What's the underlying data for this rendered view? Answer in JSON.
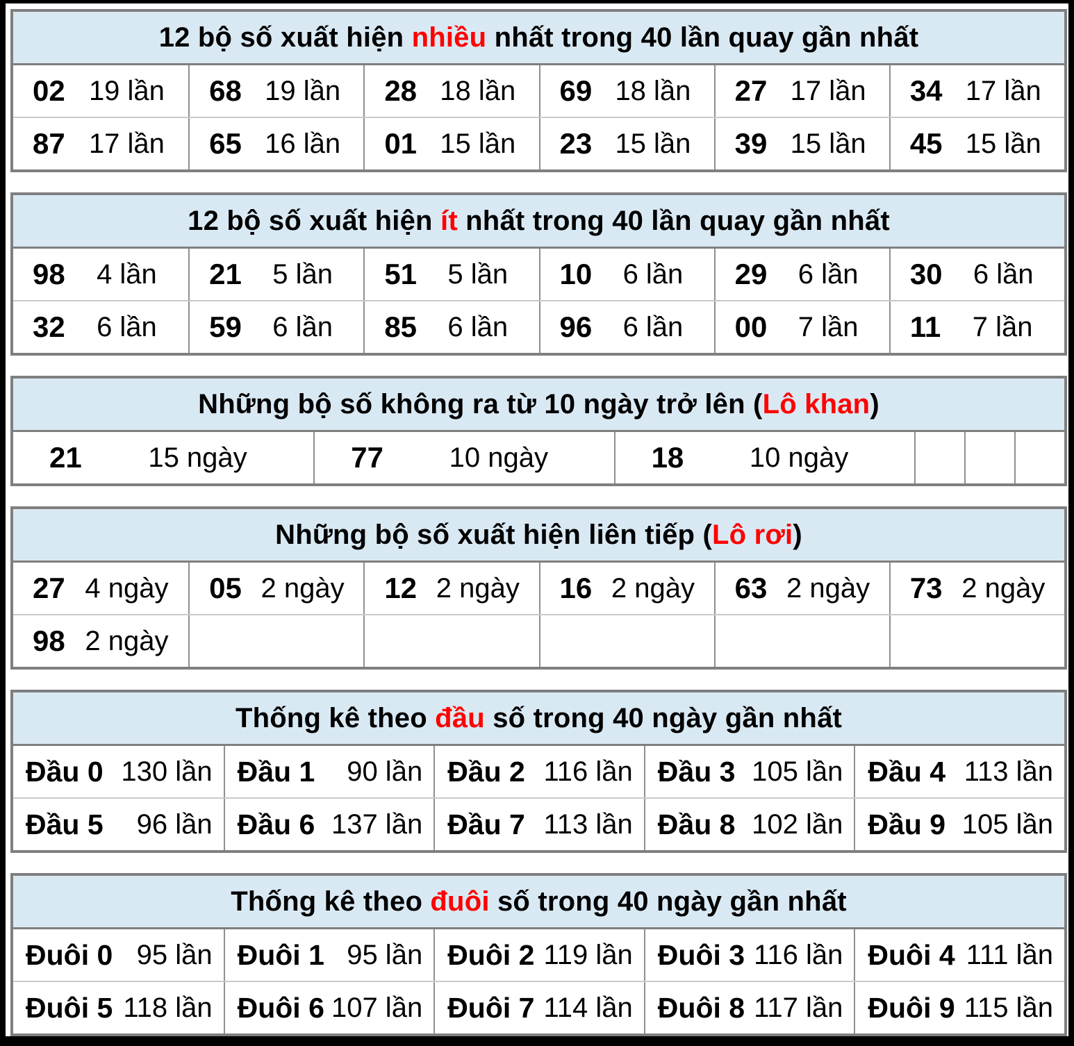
{
  "colors": {
    "header_bg": "#d9e9f4",
    "accent_red": "#ff0000",
    "table_border": "#7f7f7f",
    "cell_border": "#8f8f8f",
    "row_separator": "#c9c9c9",
    "page_bg": "#ffffff",
    "frame_bg": "#000000",
    "text": "#000000"
  },
  "chart_data": [
    {
      "type": "table",
      "name": "most-frequent",
      "title": "12 bộ số xuất hiện nhiều nhất trong 40 lần quay gần nhất",
      "title_parts": [
        {
          "t": "12 bộ số xuất hiện ",
          "red": false
        },
        {
          "t": "nhiều",
          "red": true
        },
        {
          "t": " nhất trong 40 lần quay gần nhất",
          "red": false
        }
      ],
      "layout": "cols6",
      "rows": [
        [
          {
            "n": "02",
            "v": "19 lần"
          },
          {
            "n": "68",
            "v": "19 lần"
          },
          {
            "n": "28",
            "v": "18 lần"
          },
          {
            "n": "69",
            "v": "18 lần"
          },
          {
            "n": "27",
            "v": "17 lần"
          },
          {
            "n": "34",
            "v": "17 lần"
          }
        ],
        [
          {
            "n": "87",
            "v": "17 lần"
          },
          {
            "n": "65",
            "v": "16 lần"
          },
          {
            "n": "01",
            "v": "15 lần"
          },
          {
            "n": "23",
            "v": "15 lần"
          },
          {
            "n": "39",
            "v": "15 lần"
          },
          {
            "n": "45",
            "v": "15 lần"
          }
        ]
      ]
    },
    {
      "type": "table",
      "name": "least-frequent",
      "title": "12 bộ số xuất hiện ít nhất trong 40 lần quay gần nhất",
      "title_parts": [
        {
          "t": "12 bộ số xuất hiện ",
          "red": false
        },
        {
          "t": "ít",
          "red": true
        },
        {
          "t": " nhất trong 40 lần quay gần nhất",
          "red": false
        }
      ],
      "layout": "cols6",
      "rows": [
        [
          {
            "n": "98",
            "v": "4 lần"
          },
          {
            "n": "21",
            "v": "5 lần"
          },
          {
            "n": "51",
            "v": "5 lần"
          },
          {
            "n": "10",
            "v": "6 lần"
          },
          {
            "n": "29",
            "v": "6 lần"
          },
          {
            "n": "30",
            "v": "6 lần"
          }
        ],
        [
          {
            "n": "32",
            "v": "6 lần"
          },
          {
            "n": "59",
            "v": "6 lần"
          },
          {
            "n": "85",
            "v": "6 lần"
          },
          {
            "n": "96",
            "v": "6 lần"
          },
          {
            "n": "00",
            "v": "7 lần"
          },
          {
            "n": "11",
            "v": "7 lần"
          }
        ]
      ]
    },
    {
      "type": "table",
      "name": "lo-khan",
      "title": "Những bộ số không ra từ 10 ngày trở lên (Lô khan)",
      "title_parts": [
        {
          "t": "Những bộ số không ra từ 10 ngày trở lên (",
          "red": false
        },
        {
          "t": "Lô khan",
          "red": true
        },
        {
          "t": ")",
          "red": false
        }
      ],
      "layout": "khan",
      "rows": [
        [
          {
            "n": "21",
            "v": "15 ngày"
          },
          {
            "n": "77",
            "v": "10 ngày"
          },
          {
            "n": "18",
            "v": "10 ngày"
          },
          null,
          null,
          null
        ]
      ]
    },
    {
      "type": "table",
      "name": "lo-roi",
      "title": "Những bộ số xuất hiện liên tiếp (Lô rơi)",
      "title_parts": [
        {
          "t": "Những bộ số xuất hiện liên tiếp (",
          "red": false
        },
        {
          "t": "Lô rơi",
          "red": true
        },
        {
          "t": ")",
          "red": false
        }
      ],
      "layout": "cols6",
      "rows": [
        [
          {
            "n": "27",
            "v": "4 ngày"
          },
          {
            "n": "05",
            "v": "2 ngày"
          },
          {
            "n": "12",
            "v": "2 ngày"
          },
          {
            "n": "16",
            "v": "2 ngày"
          },
          {
            "n": "63",
            "v": "2 ngày"
          },
          {
            "n": "73",
            "v": "2 ngày"
          }
        ],
        [
          {
            "n": "98",
            "v": "2 ngày"
          },
          null,
          null,
          null,
          null,
          null
        ]
      ]
    },
    {
      "type": "table",
      "name": "dau-stats",
      "title": "Thống kê theo đầu số trong 40 ngày gần nhất",
      "title_parts": [
        {
          "t": "Thống kê theo ",
          "red": false
        },
        {
          "t": "đầu",
          "red": true
        },
        {
          "t": " số trong 40 ngày gần nhất",
          "red": false
        }
      ],
      "layout": "cols5",
      "rows": [
        [
          {
            "n": "Đầu 0",
            "v": "130 lần"
          },
          {
            "n": "Đầu 1",
            "v": "90 lần"
          },
          {
            "n": "Đầu 2",
            "v": "116 lần"
          },
          {
            "n": "Đầu 3",
            "v": "105 lần"
          },
          {
            "n": "Đầu 4",
            "v": "113 lần"
          }
        ],
        [
          {
            "n": "Đầu 5",
            "v": "96 lần"
          },
          {
            "n": "Đầu 6",
            "v": "137 lần"
          },
          {
            "n": "Đầu 7",
            "v": "113 lần"
          },
          {
            "n": "Đầu 8",
            "v": "102 lần"
          },
          {
            "n": "Đầu 9",
            "v": "105 lần"
          }
        ]
      ]
    },
    {
      "type": "table",
      "name": "duoi-stats",
      "title": "Thống kê theo đuôi số trong 40 ngày gần nhất",
      "title_parts": [
        {
          "t": "Thống kê theo ",
          "red": false
        },
        {
          "t": "đuôi",
          "red": true
        },
        {
          "t": " số trong 40 ngày gần nhất",
          "red": false
        }
      ],
      "layout": "cols5",
      "rows": [
        [
          {
            "n": "Đuôi 0",
            "v": "95 lần"
          },
          {
            "n": "Đuôi 1",
            "v": "95 lần"
          },
          {
            "n": "Đuôi 2",
            "v": "119 lần"
          },
          {
            "n": "Đuôi 3",
            "v": "116 lần"
          },
          {
            "n": "Đuôi 4",
            "v": "111 lần"
          }
        ],
        [
          {
            "n": "Đuôi 5",
            "v": "118 lần"
          },
          {
            "n": "Đuôi 6",
            "v": "107 lần"
          },
          {
            "n": "Đuôi 7",
            "v": "114 lần"
          },
          {
            "n": "Đuôi 8",
            "v": "117 lần"
          },
          {
            "n": "Đuôi 9",
            "v": "115 lần"
          }
        ]
      ]
    }
  ]
}
